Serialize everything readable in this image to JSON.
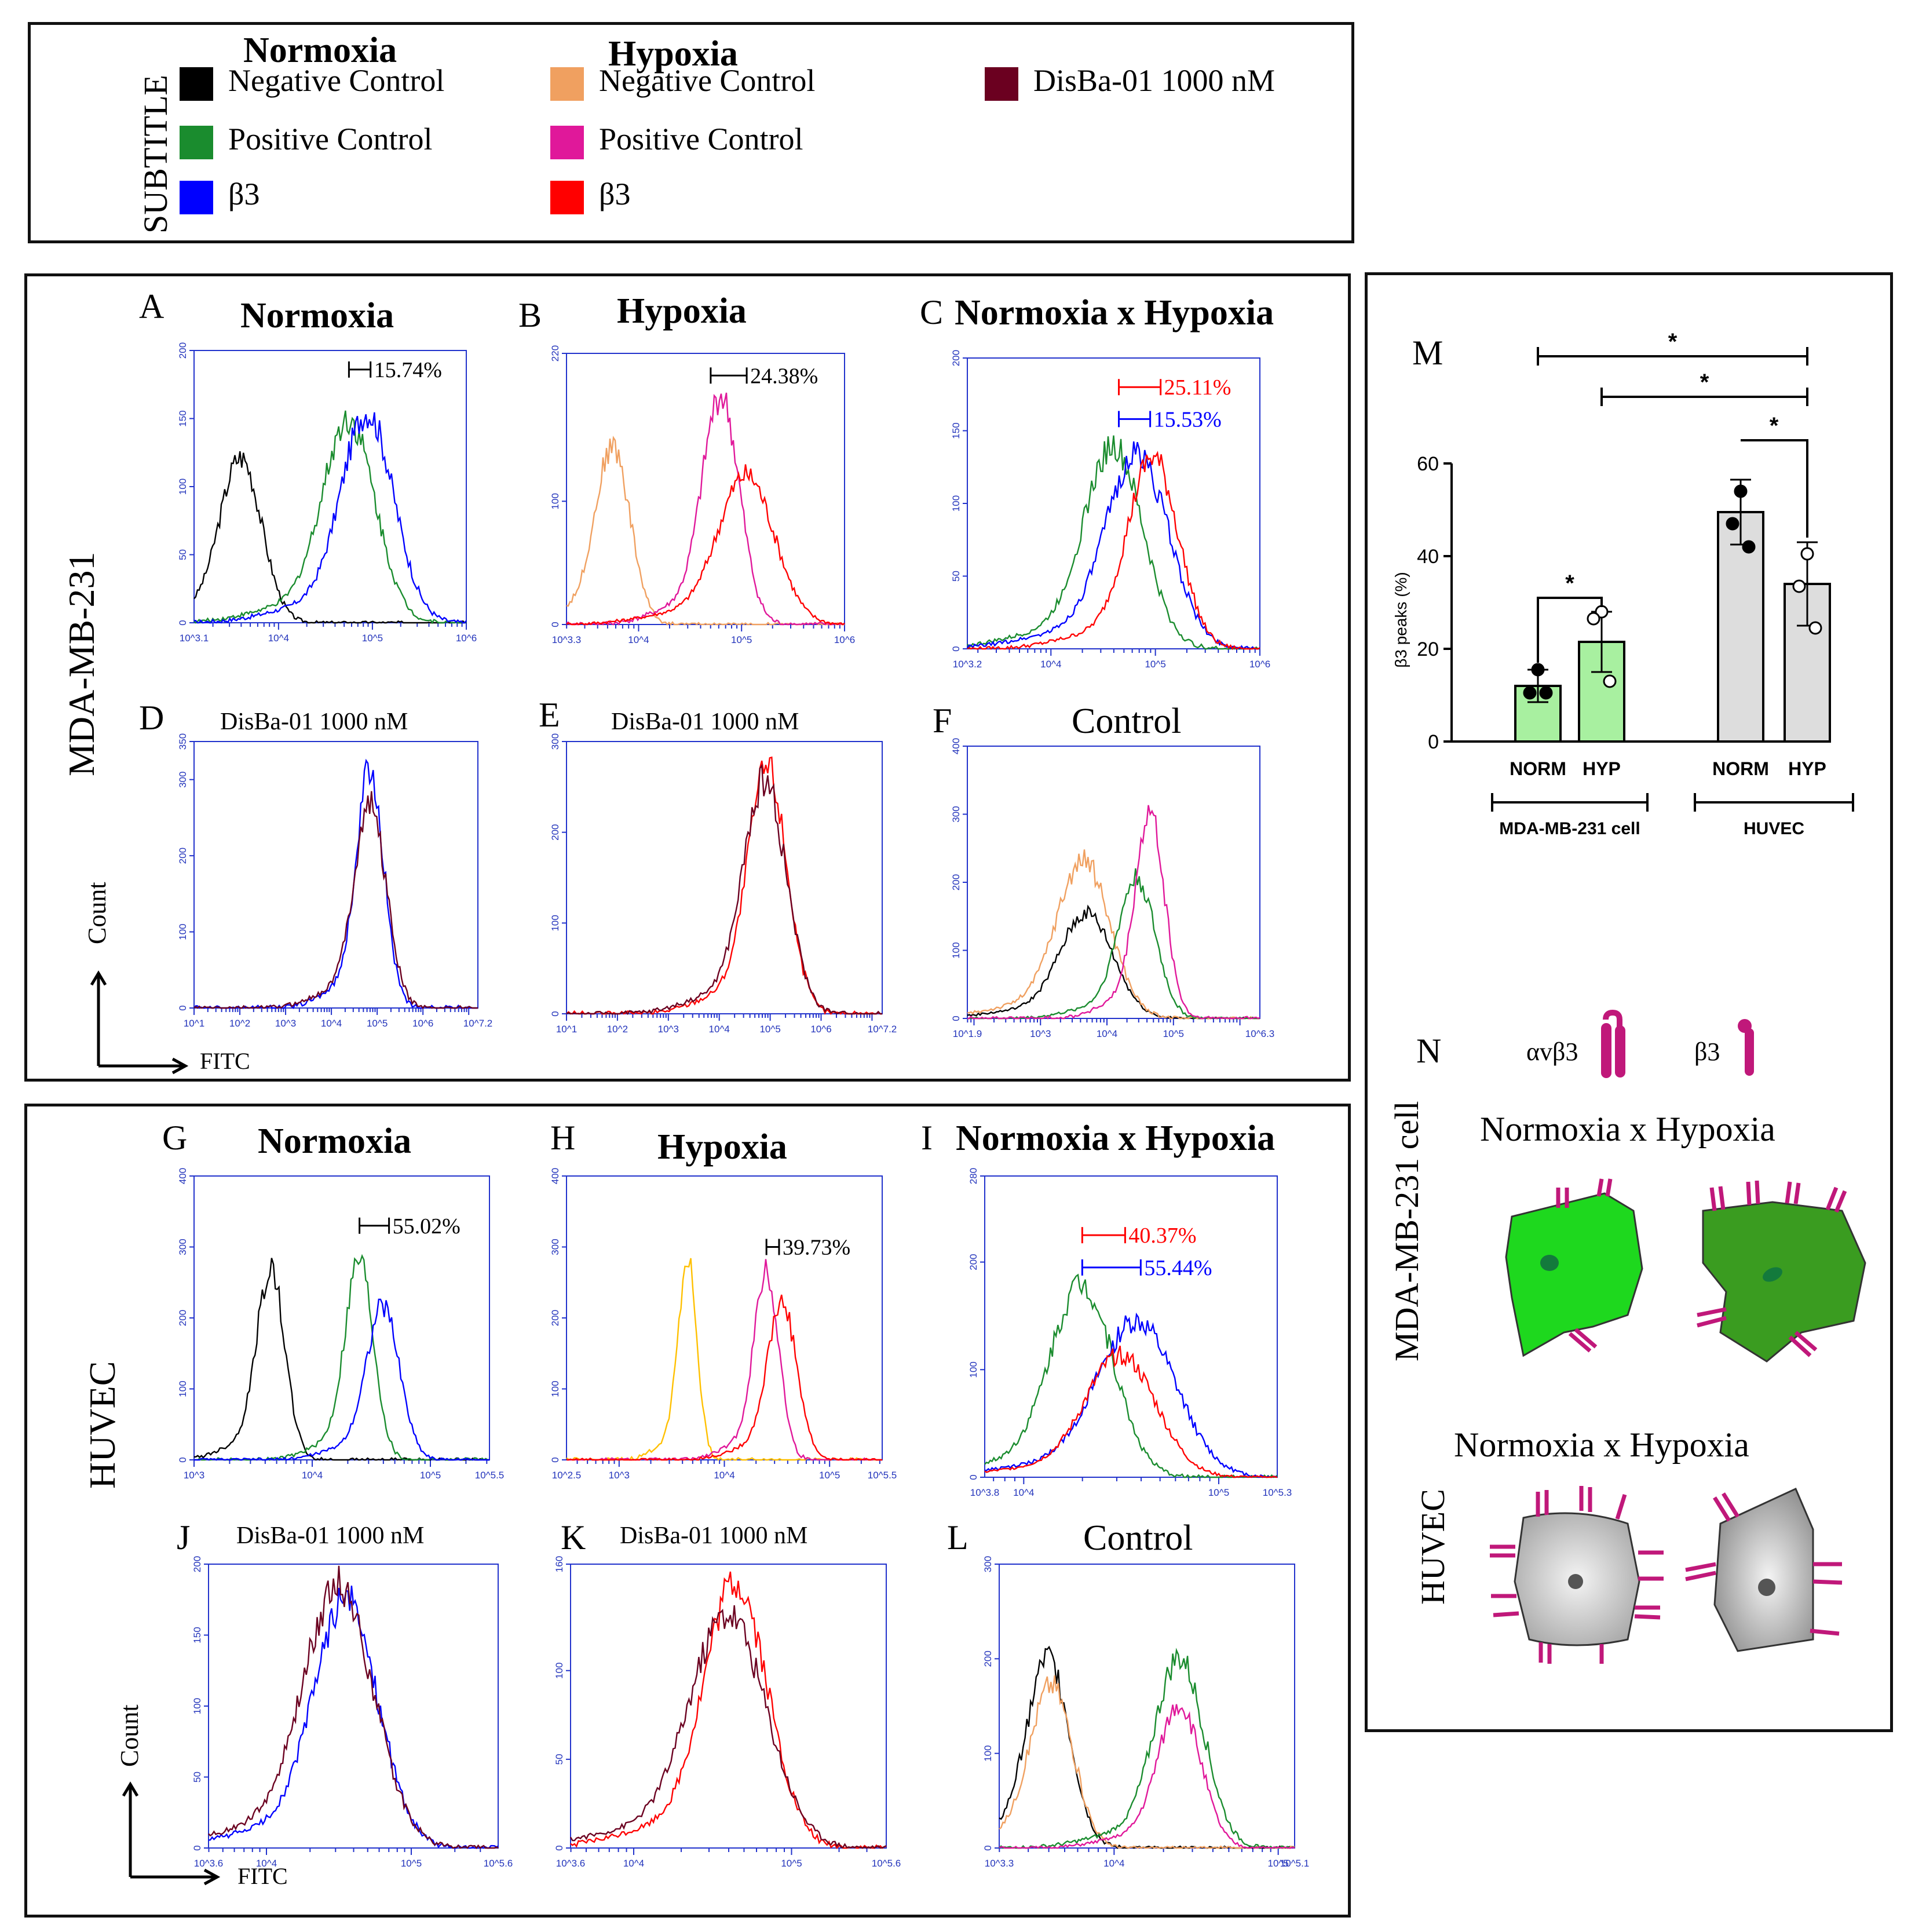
{
  "legend": {
    "heading": "SUBTITLE",
    "groups": [
      {
        "title": "Normoxia",
        "items": [
          {
            "label": "Negative Control",
            "color": "#000000"
          },
          {
            "label": "Positive Control",
            "color": "#1a8c2e"
          },
          {
            "label": "β3",
            "color": "#0000ff"
          }
        ]
      },
      {
        "title": "Hypoxia",
        "items": [
          {
            "label": "Negative Control",
            "color": "#f0a060"
          },
          {
            "label": "Positive Control",
            "color": "#e0189a"
          },
          {
            "label": "β3",
            "color": "#ff0000"
          }
        ]
      },
      {
        "title": "",
        "items": [
          {
            "label": "DisBa-01 1000 nM",
            "color": "#6b0020"
          }
        ]
      }
    ]
  },
  "rows": {
    "mda": "MDA-MB-231",
    "huvec": "HUVEC",
    "axis_x": "FITC",
    "axis_y": "Count"
  },
  "chart_data": [
    {
      "type": "line",
      "panel": "A",
      "title": "Normoxia",
      "ylim": [
        0,
        200
      ],
      "yticks": [
        "0",
        "50",
        "100",
        "150",
        "200"
      ],
      "xticks": [
        "10^3.1",
        "10^4",
        "10^5",
        "10^6"
      ],
      "xlog": [
        3.1,
        6
      ],
      "annotations": [
        {
          "text": "15.74%",
          "color": "#000000",
          "from": 4.75,
          "to": 4.98,
          "y": 186
        }
      ],
      "series": [
        {
          "name": "Negative Control",
          "color": "#000000",
          "peak": {
            "x": 3.6,
            "y": 118,
            "w": 0.22
          }
        },
        {
          "name": "Positive Control",
          "color": "#1a8c2e",
          "peak": {
            "x": 4.75,
            "y": 145,
            "w": 0.28
          }
        },
        {
          "name": "β3",
          "color": "#0000ff",
          "peak": {
            "x": 4.95,
            "y": 150,
            "w": 0.28
          }
        }
      ]
    },
    {
      "type": "line",
      "panel": "B",
      "title": "Hypoxia",
      "ylim": [
        0,
        220
      ],
      "yticks": [
        "0",
        "100",
        "220"
      ],
      "xticks": [
        "10^3.3",
        "10^4",
        "10^5",
        "10^6"
      ],
      "xlog": [
        3.3,
        6
      ],
      "annotations": [
        {
          "text": "24.38%",
          "color": "#000000",
          "from": 4.7,
          "to": 5.05,
          "y": 202
        }
      ],
      "series": [
        {
          "name": "Negative Control",
          "color": "#f0a060",
          "peak": {
            "x": 3.75,
            "y": 140,
            "w": 0.17
          }
        },
        {
          "name": "Positive Control",
          "color": "#e0189a",
          "peak": {
            "x": 4.8,
            "y": 180,
            "w": 0.18
          }
        },
        {
          "name": "β3",
          "color": "#ff0000",
          "peak": {
            "x": 5.05,
            "y": 118,
            "w": 0.27
          }
        }
      ]
    },
    {
      "type": "line",
      "panel": "C",
      "title": "Normoxia x Hypoxia",
      "ylim": [
        0,
        200
      ],
      "yticks": [
        "0",
        "50",
        "100",
        "150",
        "200"
      ],
      "xticks": [
        "10^3.2",
        "10^4",
        "10^5",
        "10^6"
      ],
      "xlog": [
        3.2,
        6
      ],
      "annotations": [
        {
          "text": "25.11%",
          "color": "#ff0000",
          "from": 4.65,
          "to": 5.05,
          "y": 180
        },
        {
          "text": "15.53%",
          "color": "#0000ff",
          "from": 4.65,
          "to": 4.95,
          "y": 158
        }
      ],
      "series": [
        {
          "name": "Positive Control",
          "color": "#1a8c2e",
          "peak": {
            "x": 4.6,
            "y": 135,
            "w": 0.28
          }
        },
        {
          "name": "β3 normoxia",
          "color": "#0000ff",
          "peak": {
            "x": 4.83,
            "y": 130,
            "w": 0.3
          }
        },
        {
          "name": "β3 hypoxia",
          "color": "#ff0000",
          "peak": {
            "x": 4.98,
            "y": 128,
            "w": 0.24
          }
        }
      ]
    },
    {
      "type": "line",
      "panel": "D",
      "title": "DisBa-01 1000 nM",
      "ylim": [
        0,
        350
      ],
      "yticks": [
        "0",
        "100",
        "200",
        "300",
        "350"
      ],
      "xticks": [
        "10^1",
        "10^2",
        "10^3",
        "10^4",
        "10^5",
        "10^6",
        "10^7.2"
      ],
      "xlog": [
        1,
        7.2
      ],
      "series": [
        {
          "name": "β3",
          "color": "#0000ff",
          "peak": {
            "x": 4.85,
            "y": 305,
            "w": 0.3
          }
        },
        {
          "name": "DisBa-01 1000 nM",
          "color": "#6b0020",
          "peak": {
            "x": 4.85,
            "y": 260,
            "w": 0.35
          }
        }
      ]
    },
    {
      "type": "line",
      "panel": "E",
      "title": "DisBa-01 1000 nM",
      "ylim": [
        0,
        300
      ],
      "yticks": [
        "0",
        "100",
        "200",
        "300"
      ],
      "xticks": [
        "10^1",
        "10^2",
        "10^3",
        "10^4",
        "10^5",
        "10^6",
        "10^7.2"
      ],
      "xlog": [
        1,
        7.2
      ],
      "series": [
        {
          "name": "β3",
          "color": "#ff0000",
          "peak": {
            "x": 4.95,
            "y": 265,
            "w": 0.38
          }
        },
        {
          "name": "DisBa-01 1000 nM",
          "color": "#6b0020",
          "peak": {
            "x": 4.9,
            "y": 250,
            "w": 0.42
          }
        }
      ]
    },
    {
      "type": "line",
      "panel": "F",
      "title": "Control",
      "ylim": [
        0,
        400
      ],
      "yticks": [
        "0",
        "100",
        "200",
        "300",
        "400"
      ],
      "xticks": [
        "10^1.9",
        "10^3",
        "10^4",
        "10^5",
        "10^6.3"
      ],
      "xlog": [
        1.9,
        6.3
      ],
      "series": [
        {
          "name": "Negative Control (N)",
          "color": "#000000",
          "peak": {
            "x": 3.7,
            "y": 150,
            "w": 0.4
          }
        },
        {
          "name": "Negative Control (H)",
          "color": "#f0a060",
          "peak": {
            "x": 3.65,
            "y": 225,
            "w": 0.4
          }
        },
        {
          "name": "Positive Control (N)",
          "color": "#1a8c2e",
          "peak": {
            "x": 4.45,
            "y": 200,
            "w": 0.28
          }
        },
        {
          "name": "Positive Control (H)",
          "color": "#e0189a",
          "peak": {
            "x": 4.65,
            "y": 290,
            "w": 0.22
          }
        }
      ]
    },
    {
      "type": "line",
      "panel": "G",
      "title": "Normoxia",
      "ylim": [
        0,
        400
      ],
      "yticks": [
        "0",
        "100",
        "200",
        "300",
        "400"
      ],
      "xticks": [
        "10^3",
        "10^4",
        "10^5",
        "10^5.5"
      ],
      "xlog": [
        3,
        5.5
      ],
      "annotations": [
        {
          "text": "55.02%",
          "color": "#000000",
          "from": 4.4,
          "to": 4.65,
          "y": 330
        }
      ],
      "series": [
        {
          "name": "Negative Control",
          "color": "#000000",
          "peak": {
            "x": 3.65,
            "y": 260,
            "w": 0.12
          }
        },
        {
          "name": "Positive Control",
          "color": "#1a8c2e",
          "peak": {
            "x": 4.4,
            "y": 275,
            "w": 0.12
          }
        },
        {
          "name": "β3",
          "color": "#0000ff",
          "peak": {
            "x": 4.6,
            "y": 210,
            "w": 0.14
          }
        }
      ]
    },
    {
      "type": "line",
      "panel": "H",
      "title": "Hypoxia",
      "ylim": [
        0,
        400
      ],
      "yticks": [
        "0",
        "100",
        "200",
        "300",
        "400"
      ],
      "xticks": [
        "10^2.5",
        "10^3",
        "10^4",
        "10^5",
        "10^5.5"
      ],
      "xlog": [
        2.5,
        5.5
      ],
      "annotations": [
        {
          "text": "39.73%",
          "color": "#000000",
          "from": 4.4,
          "to": 4.52,
          "y": 300
        }
      ],
      "series": [
        {
          "name": "Negative Control",
          "color": "#ffc000",
          "peak": {
            "x": 3.65,
            "y": 275,
            "w": 0.09
          }
        },
        {
          "name": "Positive Control",
          "color": "#e0189a",
          "peak": {
            "x": 4.4,
            "y": 255,
            "w": 0.12
          }
        },
        {
          "name": "β3",
          "color": "#ff0000",
          "peak": {
            "x": 4.55,
            "y": 215,
            "w": 0.14
          }
        }
      ]
    },
    {
      "type": "line",
      "panel": "I",
      "title": "Normoxia x Hypoxia",
      "ylim": [
        0,
        280
      ],
      "yticks": [
        "0",
        "100",
        "200",
        "280"
      ],
      "xticks": [
        "10^3.8",
        "10^4",
        "10^5",
        "10^5.3"
      ],
      "xlog": [
        3.8,
        5.3
      ],
      "annotations": [
        {
          "text": "40.37%",
          "color": "#ff0000",
          "from": 4.3,
          "to": 4.52,
          "y": 225
        },
        {
          "text": "55.44%",
          "color": "#0000ff",
          "from": 4.3,
          "to": 4.6,
          "y": 195
        }
      ],
      "series": [
        {
          "name": "Positive Control",
          "color": "#1a8c2e",
          "peak": {
            "x": 4.3,
            "y": 175,
            "w": 0.16
          }
        },
        {
          "name": "β3 normoxia",
          "color": "#0000ff",
          "peak": {
            "x": 4.58,
            "y": 140,
            "w": 0.2
          }
        },
        {
          "name": "β3 hypoxia",
          "color": "#ff0000",
          "peak": {
            "x": 4.5,
            "y": 110,
            "w": 0.18
          }
        }
      ]
    },
    {
      "type": "line",
      "panel": "J",
      "title": "DisBa-01 1000 nM",
      "ylim": [
        0,
        200
      ],
      "yticks": [
        "0",
        "50",
        "100",
        "150",
        "200"
      ],
      "xticks": [
        "10^3.6",
        "10^4",
        "10^5",
        "10^5.6"
      ],
      "xlog": [
        3.6,
        5.6
      ],
      "series": [
        {
          "name": "β3",
          "color": "#0000ff",
          "peak": {
            "x": 4.55,
            "y": 170,
            "w": 0.22
          }
        },
        {
          "name": "DisBa-01 1000 nM",
          "color": "#6b0020",
          "peak": {
            "x": 4.5,
            "y": 180,
            "w": 0.24
          }
        }
      ]
    },
    {
      "type": "line",
      "panel": "K",
      "title": "DisBa-01 1000 nM",
      "ylim": [
        0,
        160
      ],
      "yticks": [
        "0",
        "50",
        "100",
        "160"
      ],
      "xticks": [
        "10^3.6",
        "10^4",
        "10^5",
        "10^5.6"
      ],
      "xlog": [
        3.6,
        5.6
      ],
      "series": [
        {
          "name": "β3",
          "color": "#ff0000",
          "peak": {
            "x": 4.65,
            "y": 145,
            "w": 0.2
          }
        },
        {
          "name": "DisBa-01 1000 nM",
          "color": "#6b0020",
          "peak": {
            "x": 4.6,
            "y": 128,
            "w": 0.24
          }
        }
      ]
    },
    {
      "type": "line",
      "panel": "L",
      "title": "Control",
      "ylim": [
        0,
        300
      ],
      "yticks": [
        "0",
        "100",
        "200",
        "300"
      ],
      "xticks": [
        "10^3.3",
        "10^4",
        "10^5",
        "10^5.1"
      ],
      "xlog": [
        3.3,
        5.1
      ],
      "series": [
        {
          "name": "Negative Control (N)",
          "color": "#000000",
          "peak": {
            "x": 3.6,
            "y": 195,
            "w": 0.13
          }
        },
        {
          "name": "Negative Control (H)",
          "color": "#f0a060",
          "peak": {
            "x": 3.62,
            "y": 168,
            "w": 0.13
          }
        },
        {
          "name": "Positive Control (N)",
          "color": "#1a8c2e",
          "peak": {
            "x": 4.4,
            "y": 195,
            "w": 0.15
          }
        },
        {
          "name": "Positive Control (H)",
          "color": "#e0189a",
          "peak": {
            "x": 4.4,
            "y": 148,
            "w": 0.13
          }
        }
      ]
    },
    {
      "type": "bar",
      "panel": "M",
      "ylabel": "β3 peaks (%)",
      "ylim": [
        0,
        60
      ],
      "yticks": [
        "0",
        "20",
        "40",
        "60"
      ],
      "categories": [
        "NORM",
        "HYP",
        "NORM",
        "HYP"
      ],
      "groups": [
        "MDA-MB-231 cell",
        "HUVEC"
      ],
      "values": [
        12,
        21.5,
        49.5,
        34
      ],
      "errors": [
        3.5,
        6.5,
        7,
        9
      ],
      "points": [
        [
          15.5,
          10.5,
          10.5
        ],
        [
          28,
          26.5,
          13
        ],
        [
          54,
          47,
          42
        ],
        [
          40.5,
          33.5,
          24.5
        ]
      ],
      "colors": [
        "#a8f0a0",
        "#a8f0a0",
        "#dddddd",
        "#dddddd"
      ],
      "significance": "*"
    }
  ],
  "schematic": {
    "letter": "N",
    "receptor_a": "αvβ3",
    "receptor_b": "β3",
    "mda_title": "Normoxia x Hypoxia",
    "mda_label": "MDA-MB-231 cell",
    "huvec_title": "Normoxia x Hypoxia",
    "huvec_label": "HUVEC"
  }
}
